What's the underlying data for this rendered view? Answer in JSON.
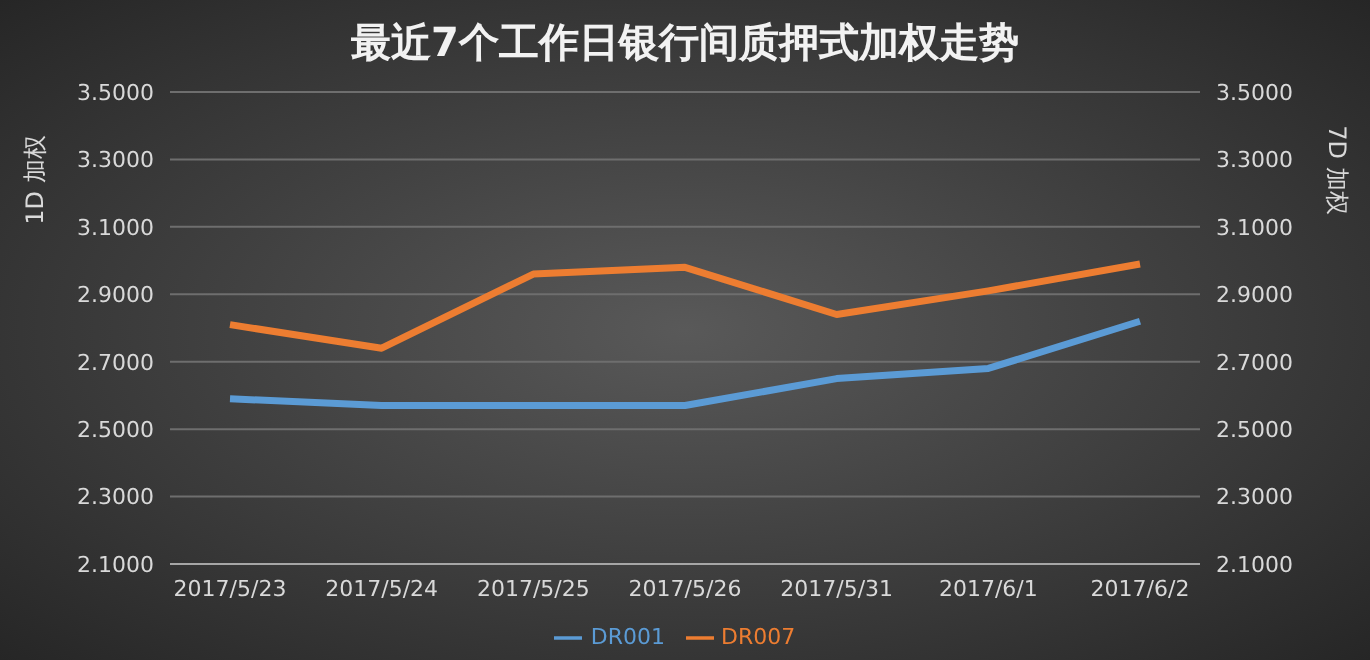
{
  "chart_data": {
    "type": "line",
    "title": "最近7个工作日银行间质押式加权走势",
    "ylabel": "1D 加权",
    "y2label": "7D 加权",
    "categories": [
      "2017/5/23",
      "2017/5/24",
      "2017/5/25",
      "2017/5/26",
      "2017/5/31",
      "2017/6/1",
      "2017/6/2"
    ],
    "series": [
      {
        "name": "DR001",
        "color": "#5b9bd5",
        "values": [
          2.59,
          2.57,
          2.57,
          2.57,
          2.65,
          2.68,
          2.82
        ]
      },
      {
        "name": "DR007",
        "color": "#ed7d31",
        "axis": "y2",
        "values": [
          2.81,
          2.74,
          2.96,
          2.98,
          2.84,
          2.91,
          2.99
        ]
      }
    ],
    "ylim": [
      2.1,
      3.5
    ],
    "yticks": [
      {
        "value": 2.1,
        "label": "2.1000"
      },
      {
        "value": 2.3,
        "label": "2.3000"
      },
      {
        "value": 2.5,
        "label": "2.5000"
      },
      {
        "value": 2.7,
        "label": "2.7000"
      },
      {
        "value": 2.9,
        "label": "2.9000"
      },
      {
        "value": 3.1,
        "label": "3.1000"
      },
      {
        "value": 3.3,
        "label": "3.3000"
      },
      {
        "value": 3.5,
        "label": "3.5000"
      }
    ],
    "y2lim": [
      2.1,
      3.5
    ],
    "y2ticks": [
      {
        "value": 2.1,
        "label": "2.1000"
      },
      {
        "value": 2.3,
        "label": "2.3000"
      },
      {
        "value": 2.5,
        "label": "2.5000"
      },
      {
        "value": 2.7,
        "label": "2.7000"
      },
      {
        "value": 2.9,
        "label": "2.9000"
      },
      {
        "value": 3.1,
        "label": "3.1000"
      },
      {
        "value": 3.3,
        "label": "3.3000"
      },
      {
        "value": 3.5,
        "label": "3.5000"
      }
    ],
    "grid": "y",
    "legend": "bottom",
    "marker": "none",
    "line_style": "solid"
  }
}
